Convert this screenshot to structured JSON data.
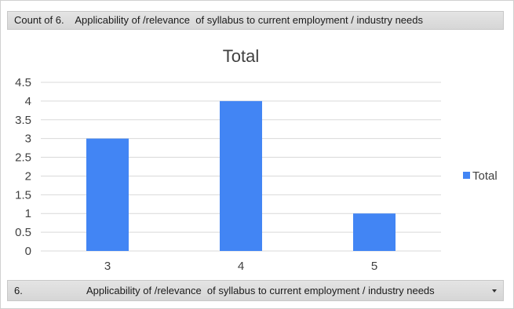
{
  "header": {
    "field_label": "Count of 6.    Applicability of /relevance  of syllabus to current employment / industry needs"
  },
  "footer": {
    "field_number": "6.",
    "field_label": "Applicability of /relevance  of syllabus to current employment / industry needs",
    "dropdown_icon": "chevron-down-icon"
  },
  "chart_data": {
    "type": "bar",
    "title": "Total",
    "categories": [
      "3",
      "4",
      "5"
    ],
    "series": [
      {
        "name": "Total",
        "values": [
          3,
          4,
          1
        ],
        "color": "#4285f4"
      }
    ],
    "xlabel": "",
    "ylabel": "",
    "ylim": [
      0,
      4.5
    ],
    "yticks": [
      "0",
      "0.5",
      "1",
      "1.5",
      "2",
      "2.5",
      "3",
      "3.5",
      "4",
      "4.5"
    ],
    "grid": true,
    "legend_position": "right",
    "gridline_color": "#d9d9d9"
  }
}
